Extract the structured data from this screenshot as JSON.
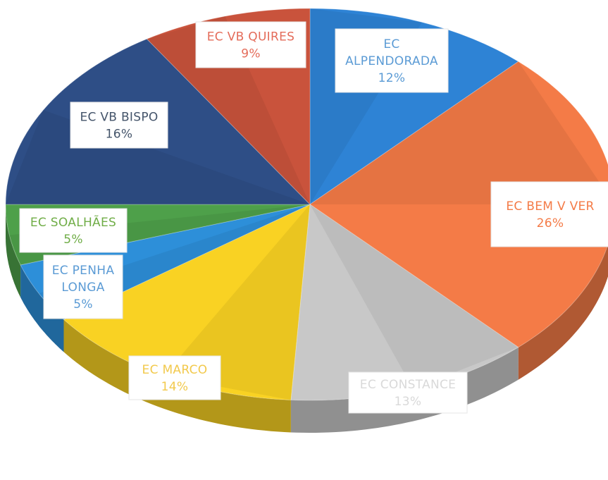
{
  "chart_data": {
    "type": "pie",
    "title": "",
    "start_angle_deg": -90,
    "direction": "clockwise",
    "slices": [
      {
        "label_lines": [
          "EC",
          "ALPENDORADA"
        ],
        "value_label": "12%",
        "value": 12,
        "color": "#2E83D5",
        "text_color": "#5B9BD5"
      },
      {
        "label_lines": [
          "EC BEM V VER"
        ],
        "value_label": "26%",
        "value": 26,
        "color": "#F47B47",
        "text_color": "#F47B47"
      },
      {
        "label_lines": [
          "EC CONSTANCE"
        ],
        "value_label": "13%",
        "value": 13,
        "color": "#C8C8C8",
        "text_color": "#D9D9D9"
      },
      {
        "label_lines": [
          "EC MARCO"
        ],
        "value_label": "14%",
        "value": 14,
        "color": "#F9D223",
        "text_color": "#F2C94C"
      },
      {
        "label_lines": [
          "EC PENHA",
          "LONGA"
        ],
        "value_label": "5%",
        "value": 5,
        "color": "#2D8FD9",
        "text_color": "#5B9BD5"
      },
      {
        "label_lines": [
          "EC SOALHÃES"
        ],
        "value_label": "5%",
        "value": 5,
        "color": "#4EA04A",
        "text_color": "#70AD47"
      },
      {
        "label_lines": [
          "EC VB BISPO"
        ],
        "value_label": "16%",
        "value": 16,
        "color": "#2E4E86",
        "text_color": "#44546A"
      },
      {
        "label_lines": [
          "EC VB QUIRES"
        ],
        "value_label": "9%",
        "value": 9,
        "color": "#C9533C",
        "text_color": "#E46C5A"
      }
    ]
  }
}
